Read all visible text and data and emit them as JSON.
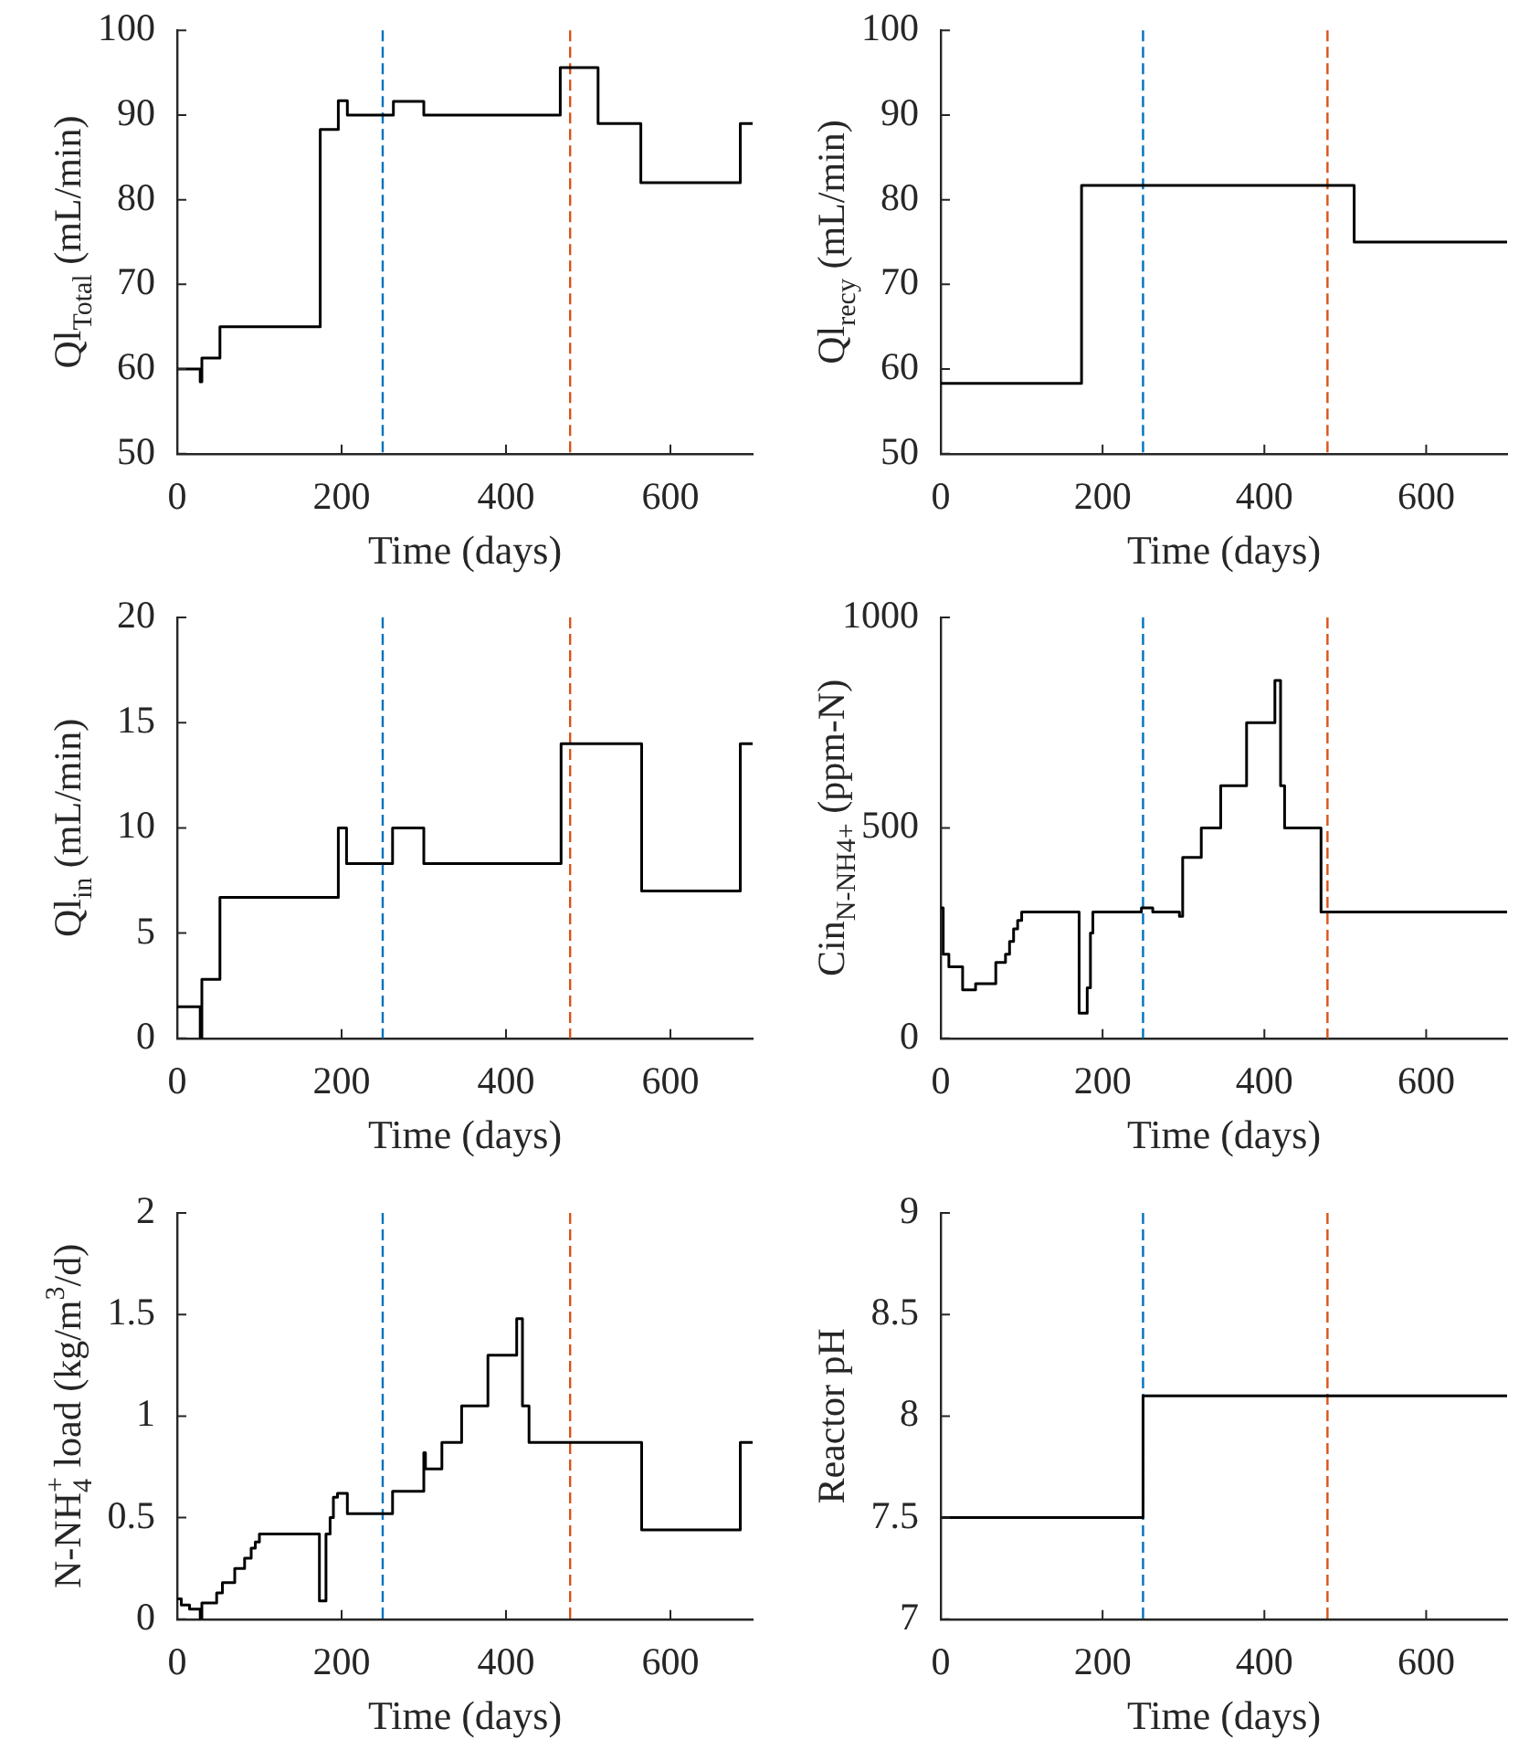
{
  "chart_data": [
    {
      "type": "step",
      "xlabel": "Time (days)",
      "ylabel": "Ql$_{Total}$ (mL/min)",
      "color": "#000000",
      "xlim": [
        0,
        700
      ],
      "xticks": [
        0,
        200,
        400,
        600
      ],
      "ylim": [
        50,
        100
      ],
      "yticks": [
        50,
        60,
        70,
        80,
        90,
        100
      ],
      "x": [
        0,
        28,
        30,
        52,
        174,
        196,
        207,
        263,
        300,
        466,
        512,
        564,
        685,
        700
      ],
      "values": [
        60,
        58.5,
        61.3,
        65,
        88.3,
        91.7,
        90,
        91.6,
        90,
        95.6,
        89,
        82,
        89,
        89
      ],
      "ref_lines": [
        {
          "axis": "x",
          "value": 250,
          "color": "#0072bd",
          "line_style": "dashed"
        },
        {
          "axis": "x",
          "value": 478,
          "color": "#d95319",
          "line_style": "dashed"
        }
      ]
    },
    {
      "type": "step",
      "xlabel": "Time (days)",
      "ylabel": "Ql$_{recy}$ (mL/min)",
      "color": "#000000",
      "xlim": [
        0,
        700
      ],
      "xticks": [
        0,
        200,
        400,
        600
      ],
      "ylim": [
        50,
        100
      ],
      "yticks": [
        50,
        60,
        70,
        80,
        90,
        100
      ],
      "x": [
        0,
        174,
        511,
        700
      ],
      "values": [
        58.3,
        81.7,
        75,
        75
      ],
      "ref_lines": [
        {
          "axis": "x",
          "value": 250,
          "color": "#0072bd",
          "line_style": "dashed"
        },
        {
          "axis": "x",
          "value": 478,
          "color": "#d95319",
          "line_style": "dashed"
        }
      ]
    },
    {
      "type": "step",
      "xlabel": "Time (days)",
      "ylabel": "Ql$_{in}$ (mL/min)",
      "color": "#000000",
      "xlim": [
        0,
        700
      ],
      "xticks": [
        0,
        200,
        400,
        600
      ],
      "ylim": [
        0,
        20
      ],
      "yticks": [
        0,
        5,
        10,
        15,
        20
      ],
      "x": [
        0,
        28,
        30,
        52,
        196,
        206,
        262,
        300,
        467,
        565,
        685,
        700
      ],
      "values": [
        1.5,
        0,
        2.8,
        6.7,
        10,
        8.3,
        10,
        8.3,
        14,
        7,
        14,
        14
      ],
      "ref_lines": [
        {
          "axis": "x",
          "value": 250,
          "color": "#0072bd",
          "line_style": "dashed"
        },
        {
          "axis": "x",
          "value": 478,
          "color": "#d95319",
          "line_style": "dashed"
        }
      ]
    },
    {
      "type": "step",
      "xlabel": "Time (days)",
      "ylabel": "Cin$_{N-NH4+}$ (ppm-N)",
      "color": "#000000",
      "xlim": [
        0,
        700
      ],
      "xticks": [
        0,
        200,
        400,
        600
      ],
      "ylim": [
        0,
        1000
      ],
      "yticks": [
        0,
        500,
        1000
      ],
      "x": [
        0,
        3,
        10,
        27,
        43,
        68,
        80,
        85,
        90,
        95,
        100,
        171,
        181,
        185,
        188,
        248,
        262,
        295,
        299,
        322,
        346,
        378,
        413,
        420,
        425,
        470,
        700
      ],
      "values": [
        310,
        200,
        170,
        115,
        130,
        180,
        200,
        230,
        260,
        280,
        300,
        60,
        120,
        250,
        300,
        310,
        300,
        290,
        430,
        500,
        600,
        750,
        850,
        600,
        500,
        300,
        300
      ],
      "ref_lines": [
        {
          "axis": "x",
          "value": 250,
          "color": "#0072bd",
          "line_style": "dashed"
        },
        {
          "axis": "x",
          "value": 478,
          "color": "#d95319",
          "line_style": "dashed"
        }
      ]
    },
    {
      "type": "step",
      "xlabel": "Time (days)",
      "ylabel": "N-NH$_{4}$$^{+}$ load (kg/m$^{3}$/d)",
      "color": "#000000",
      "xlim": [
        0,
        700
      ],
      "xticks": [
        0,
        200,
        400,
        600
      ],
      "ylim": [
        0,
        2
      ],
      "yticks": [
        0,
        0.5,
        1,
        1.5,
        2
      ],
      "x": [
        0,
        5,
        15,
        28,
        30,
        48,
        55,
        70,
        82,
        90,
        95,
        100,
        173,
        181,
        186,
        190,
        195,
        207,
        262,
        300,
        302,
        322,
        346,
        378,
        413,
        420,
        428,
        565,
        685,
        700
      ],
      "values": [
        0.1,
        0.07,
        0.05,
        0,
        0.08,
        0.13,
        0.18,
        0.25,
        0.3,
        0.35,
        0.38,
        0.42,
        0.09,
        0.42,
        0.5,
        0.6,
        0.62,
        0.52,
        0.63,
        0.82,
        0.74,
        0.87,
        1.05,
        1.3,
        1.48,
        1.05,
        0.87,
        0.44,
        0.87,
        0.87
      ],
      "ref_lines": [
        {
          "axis": "x",
          "value": 250,
          "color": "#0072bd",
          "line_style": "dashed"
        },
        {
          "axis": "x",
          "value": 478,
          "color": "#d95319",
          "line_style": "dashed"
        }
      ]
    },
    {
      "type": "step",
      "xlabel": "Time (days)",
      "ylabel": "Reactor pH",
      "color": "#000000",
      "xlim": [
        0,
        700
      ],
      "xticks": [
        0,
        200,
        400,
        600
      ],
      "ylim": [
        7,
        9
      ],
      "yticks": [
        7,
        7.5,
        8,
        8.5,
        9
      ],
      "x": [
        0,
        250,
        700
      ],
      "values": [
        7.5,
        8.1,
        8.1
      ],
      "ref_lines": [
        {
          "axis": "x",
          "value": 250,
          "color": "#0072bd",
          "line_style": "dashed"
        },
        {
          "axis": "x",
          "value": 478,
          "color": "#d95319",
          "line_style": "dashed"
        }
      ]
    }
  ]
}
